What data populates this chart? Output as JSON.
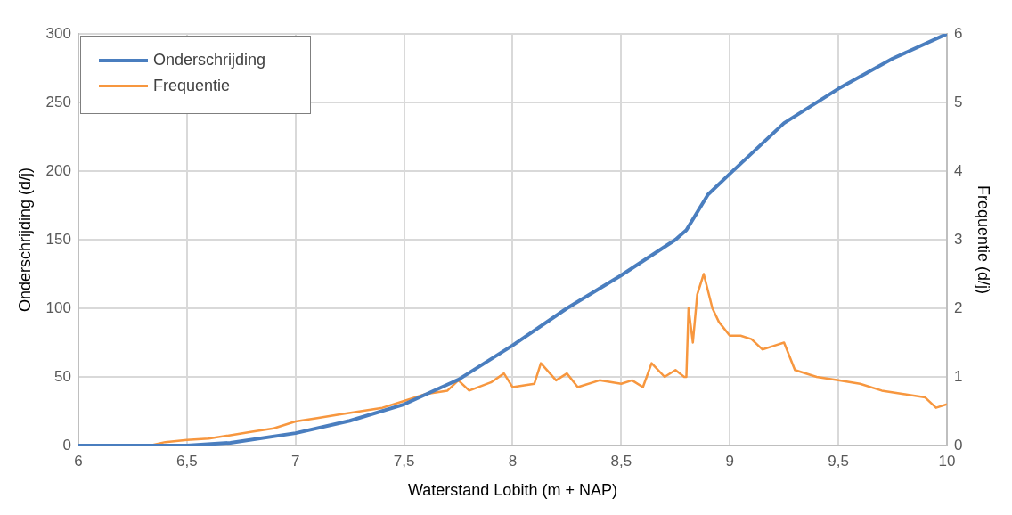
{
  "chart_data": {
    "type": "line",
    "xlabel": "Waterstand Lobith (m + NAP)",
    "ylabel": "Onderschrijding (d/j)",
    "y2label": "Frequentie (d/j)",
    "series": [
      {
        "name": "Onderschrijding",
        "color": "#4a7ebf",
        "x": [
          6,
          6.5,
          6.7,
          7,
          7.25,
          7.5,
          7.75,
          8,
          8.25,
          8.5,
          8.75,
          8.8,
          8.85,
          8.9,
          9,
          9.25,
          9.5,
          9.75,
          10
        ],
        "values": [
          0,
          0,
          2,
          9,
          18,
          30,
          48,
          73,
          100,
          124,
          150,
          157,
          170,
          183,
          198,
          235,
          260,
          282,
          300
        ]
      },
      {
        "name": "Frequentie",
        "color": "#f7973f",
        "axis": "y2",
        "x": [
          6.33,
          6.4,
          6.5,
          6.6,
          6.7,
          6.8,
          6.9,
          7,
          7.1,
          7.2,
          7.3,
          7.4,
          7.5,
          7.6,
          7.7,
          7.75,
          7.8,
          7.9,
          7.96,
          8,
          8.1,
          8.13,
          8.2,
          8.25,
          8.3,
          8.4,
          8.5,
          8.55,
          8.6,
          8.64,
          8.7,
          8.75,
          8.79,
          8.8,
          8.81,
          8.83,
          8.85,
          8.88,
          8.92,
          8.95,
          9,
          9.05,
          9.1,
          9.15,
          9.2,
          9.25,
          9.3,
          9.4,
          9.5,
          9.6,
          9.7,
          9.8,
          9.9,
          9.95,
          10
        ],
        "values": [
          0,
          0.05,
          0.08,
          0.1,
          0.15,
          0.2,
          0.25,
          0.35,
          0.4,
          0.45,
          0.5,
          0.55,
          0.65,
          0.75,
          0.8,
          0.95,
          0.8,
          0.92,
          1.05,
          0.85,
          0.9,
          1.2,
          0.95,
          1.05,
          0.85,
          0.95,
          0.9,
          0.95,
          0.85,
          1.2,
          1,
          1.1,
          1,
          1,
          2,
          1.5,
          2.2,
          2.5,
          2,
          1.8,
          1.6,
          1.6,
          1.55,
          1.4,
          1.45,
          1.5,
          1.1,
          1,
          0.95,
          0.9,
          0.8,
          0.75,
          0.7,
          0.55,
          0.6
        ]
      }
    ],
    "xlim": [
      6,
      10
    ],
    "xticks": [
      {
        "value": 6,
        "label": "6"
      },
      {
        "value": 6.5,
        "label": "6,5"
      },
      {
        "value": 7,
        "label": "7"
      },
      {
        "value": 7.5,
        "label": "7,5"
      },
      {
        "value": 8,
        "label": "8"
      },
      {
        "value": 8.5,
        "label": "8,5"
      },
      {
        "value": 9,
        "label": "9"
      },
      {
        "value": 9.5,
        "label": "9,5"
      },
      {
        "value": 10,
        "label": "10"
      }
    ],
    "ylim": [
      0,
      300
    ],
    "yticks": [
      0,
      50,
      100,
      150,
      200,
      250,
      300
    ],
    "y2lim": [
      0,
      6
    ],
    "y2ticks": [
      0,
      1,
      2,
      3,
      4,
      5,
      6
    ],
    "grid": true,
    "legend": "top left",
    "marker": "none",
    "line_style": "solid"
  }
}
